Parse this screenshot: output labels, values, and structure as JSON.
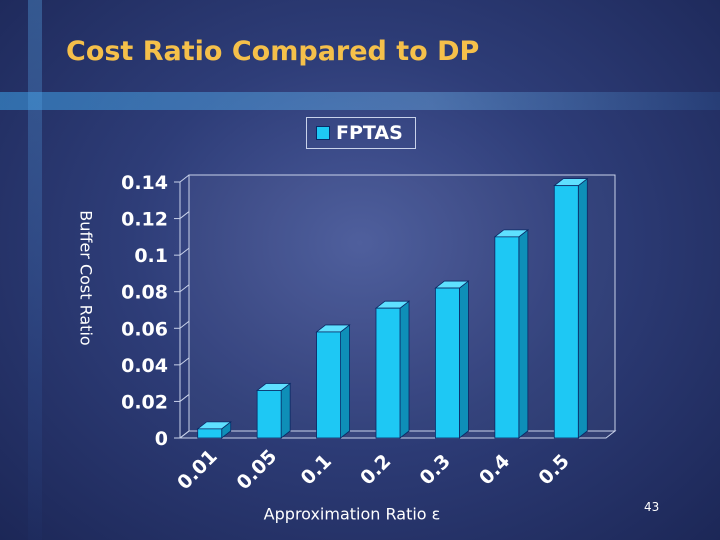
{
  "slide": {
    "title": "Cost Ratio Compared to DP",
    "number": "43"
  },
  "colors": {
    "title": "#f5c04a",
    "bar_front": "#1ec8f4",
    "bar_top": "#5fe0ff",
    "bar_side": "#0e8fb8",
    "text": "#ffffff"
  },
  "chart_data": {
    "type": "bar",
    "categories": [
      "0.01",
      "0.05",
      "0.1",
      "0.2",
      "0.3",
      "0.4",
      "0.5"
    ],
    "series": [
      {
        "name": "FPTAS",
        "values": [
          0.005,
          0.026,
          0.058,
          0.071,
          0.082,
          0.11,
          0.138
        ]
      }
    ],
    "xlabel": "Approximation Ratio ε",
    "ylabel": "Buffer Cost Ratio",
    "ylim": [
      0,
      0.14
    ],
    "yticks": [
      "0",
      "0.02",
      "0.04",
      "0.06",
      "0.08",
      "0.1",
      "0.12",
      "0.14"
    ],
    "legend_position": "top-center",
    "style": "3d-column"
  }
}
